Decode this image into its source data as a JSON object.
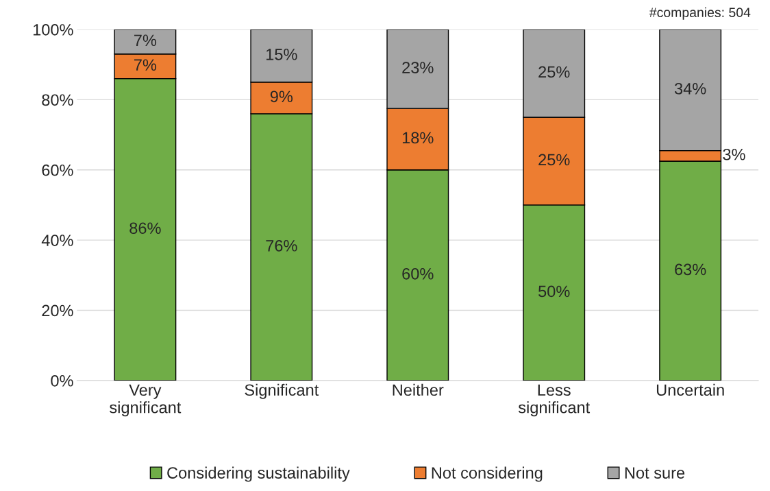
{
  "chart_data": {
    "type": "bar",
    "stacked": true,
    "categories": [
      "Very\nsignificant",
      "Significant",
      "Neither",
      "Less\nsignificant",
      "Uncertain"
    ],
    "series": [
      {
        "name": "Considering sustainability",
        "color": "#70ad47",
        "values": [
          86,
          76,
          60,
          50,
          62.5
        ],
        "value_labels": [
          "86%",
          "76%",
          "60%",
          "50%",
          "63%"
        ]
      },
      {
        "name": "Not considering",
        "color": "#ed7d31",
        "values": [
          7,
          9,
          17.5,
          25,
          3
        ],
        "value_labels": [
          "7%",
          "9%",
          "18%",
          "25%",
          "3%"
        ]
      },
      {
        "name": "Not sure",
        "color": "#a5a5a5",
        "values": [
          7,
          15,
          22.5,
          25,
          34.5
        ],
        "value_labels": [
          "7%",
          "15%",
          "23%",
          "25%",
          "34%"
        ]
      }
    ],
    "ylim": [
      0,
      100
    ],
    "yticks": [
      {
        "value": 0,
        "label": "0%"
      },
      {
        "value": 20,
        "label": "20%"
      },
      {
        "value": 40,
        "label": "40%"
      },
      {
        "value": 60,
        "label": "60%"
      },
      {
        "value": 80,
        "label": "80%"
      },
      {
        "value": 100,
        "label": "100%"
      }
    ],
    "grid": "y",
    "legend": "bottom",
    "annotations": [
      "#companies: 504"
    ]
  }
}
